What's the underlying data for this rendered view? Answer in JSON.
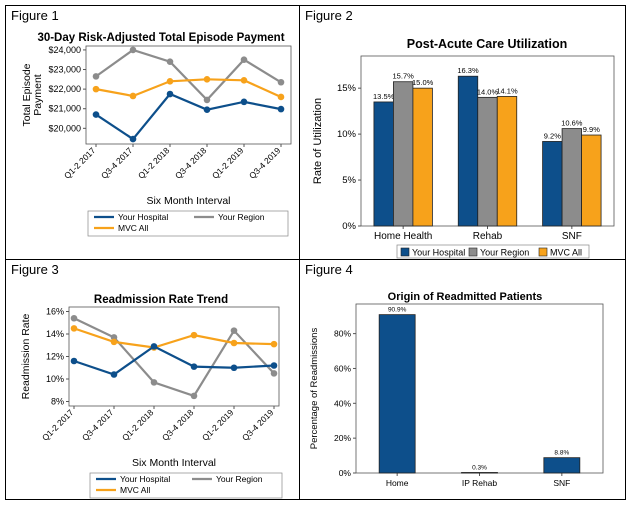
{
  "panels": [
    {
      "label": "Figure 1"
    },
    {
      "label": "Figure 2"
    },
    {
      "label": "Figure 3"
    },
    {
      "label": "Figure 4"
    }
  ],
  "colors": {
    "hospital": "#0d4f8b",
    "region": "#8c8c8c",
    "mvc": "#f7a21b"
  },
  "chart_data": [
    {
      "type": "line",
      "title": "30-Day Risk-Adjusted Total Episode Payment",
      "xlabel": "Six Month Interval",
      "ylabel_lines": [
        "Total Episode",
        "Payment"
      ],
      "categories": [
        "Q1-2 2017",
        "Q3-4 2017",
        "Q1-2 2018",
        "Q3-4 2018",
        "Q1-2 2019",
        "Q3-4 2019"
      ],
      "ylim": [
        19200,
        24200
      ],
      "yticks": [
        20000,
        21000,
        22000,
        23000,
        24000
      ],
      "ytick_labels": [
        "$20,000",
        "$21,000",
        "$22,000",
        "$23,000",
        "$24,000"
      ],
      "series": [
        {
          "name": "Your Hospital",
          "values": [
            20700,
            19450,
            21750,
            20950,
            21350,
            20980
          ]
        },
        {
          "name": "Your Region",
          "values": [
            22650,
            24000,
            23400,
            21450,
            23500,
            22350
          ]
        },
        {
          "name": "MVC All",
          "values": [
            22000,
            21650,
            22400,
            22500,
            22450,
            21600
          ]
        }
      ],
      "legend_position": "bottom"
    },
    {
      "type": "bar",
      "title": "Post-Acute Care Utilization",
      "ylabel": "Rate of Utilization",
      "categories": [
        "Home Health",
        "Rehab",
        "SNF"
      ],
      "ylim": [
        0,
        18.5
      ],
      "yticks": [
        0,
        5,
        10,
        15
      ],
      "ytick_labels": [
        "0%",
        "5%",
        "10%",
        "15%"
      ],
      "series": [
        {
          "name": "Your Hospital",
          "values": [
            13.5,
            16.3,
            9.2
          ],
          "labels": [
            "13.5%",
            "16.3%",
            "9.2%"
          ]
        },
        {
          "name": "Your Region",
          "values": [
            15.7,
            14.0,
            10.6
          ],
          "labels": [
            "15.7%",
            "14.0%",
            "10.6%"
          ]
        },
        {
          "name": "MVC All",
          "values": [
            15.0,
            14.1,
            9.9
          ],
          "labels": [
            "15.0%",
            "14.1%",
            "9.9%"
          ]
        }
      ],
      "legend_position": "bottom"
    },
    {
      "type": "line",
      "title": "Readmission Rate Trend",
      "xlabel": "Six Month Interval",
      "ylabel": "Readmission Rate",
      "categories": [
        "Q1-2 2017",
        "Q3-4 2017",
        "Q1-2 2018",
        "Q3-4 2018",
        "Q1-2 2019",
        "Q3-4 2019"
      ],
      "ylim": [
        7.6,
        16.4
      ],
      "yticks": [
        8,
        10,
        12,
        14,
        16
      ],
      "ytick_labels": [
        "8%",
        "10%",
        "12%",
        "14%",
        "16%"
      ],
      "series": [
        {
          "name": "Your Hospital",
          "values": [
            11.6,
            10.4,
            12.9,
            11.1,
            11.0,
            11.2
          ]
        },
        {
          "name": "Your Region",
          "values": [
            15.4,
            13.7,
            9.7,
            8.5,
            14.3,
            10.5
          ]
        },
        {
          "name": "MVC All",
          "values": [
            14.5,
            13.3,
            12.8,
            13.9,
            13.2,
            13.1
          ]
        }
      ],
      "legend_position": "bottom"
    },
    {
      "type": "bar",
      "title": "Origin of Readmitted Patients",
      "ylabel": "Percentage of Readmissions",
      "categories": [
        "Home",
        "IP Rehab",
        "SNF"
      ],
      "ylim": [
        0,
        97
      ],
      "yticks": [
        0,
        20,
        40,
        60,
        80
      ],
      "ytick_labels": [
        "0%",
        "20%",
        "40%",
        "60%",
        "80%"
      ],
      "series": [
        {
          "values": [
            90.9,
            0.3,
            8.8
          ],
          "labels": [
            "90.9%",
            "0.3%",
            "8.8%"
          ]
        }
      ]
    }
  ]
}
